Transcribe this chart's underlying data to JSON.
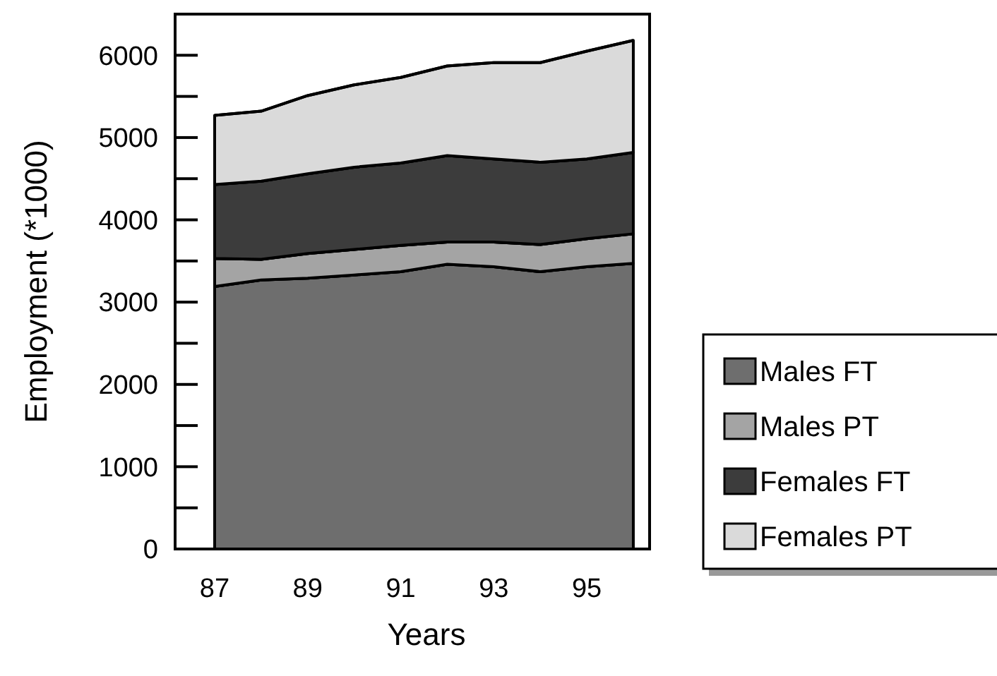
{
  "chart_data": {
    "type": "area",
    "stacked": true,
    "xlabel": "Years",
    "ylabel": "Employment (*1000)",
    "x": [
      87,
      88,
      89,
      90,
      91,
      92,
      93,
      94,
      95,
      96
    ],
    "xlim": [
      86.15,
      96.35
    ],
    "xticks": [
      87,
      89,
      91,
      93,
      95
    ],
    "ylim": [
      0,
      6500
    ],
    "yticks": [
      0,
      {
        "value": 500,
        "label": null
      },
      1000,
      {
        "value": 1500,
        "label": null
      },
      2000,
      {
        "value": 2500,
        "label": null
      },
      3000,
      {
        "value": 3500,
        "label": null
      },
      4000,
      {
        "value": 4500,
        "label": null
      },
      5000,
      {
        "value": 5500,
        "label": null
      },
      6000
    ],
    "legend": "right",
    "grid": false,
    "series": [
      {
        "name": "Males FT",
        "color": "#6e6e6e",
        "values": [
          3190,
          3270,
          3290,
          3330,
          3370,
          3460,
          3430,
          3370,
          3430,
          3470
        ]
      },
      {
        "name": "Males PT",
        "color": "#a4a4a4",
        "values": [
          340,
          250,
          300,
          310,
          320,
          270,
          300,
          330,
          340,
          360
        ]
      },
      {
        "name": "Females FT",
        "color": "#3c3c3c",
        "values": [
          900,
          950,
          970,
          1000,
          1000,
          1050,
          1010,
          1000,
          970,
          990
        ]
      },
      {
        "name": "Females PT",
        "color": "#dadada",
        "values": [
          840,
          850,
          950,
          1000,
          1040,
          1090,
          1170,
          1210,
          1310,
          1360
        ]
      }
    ]
  }
}
